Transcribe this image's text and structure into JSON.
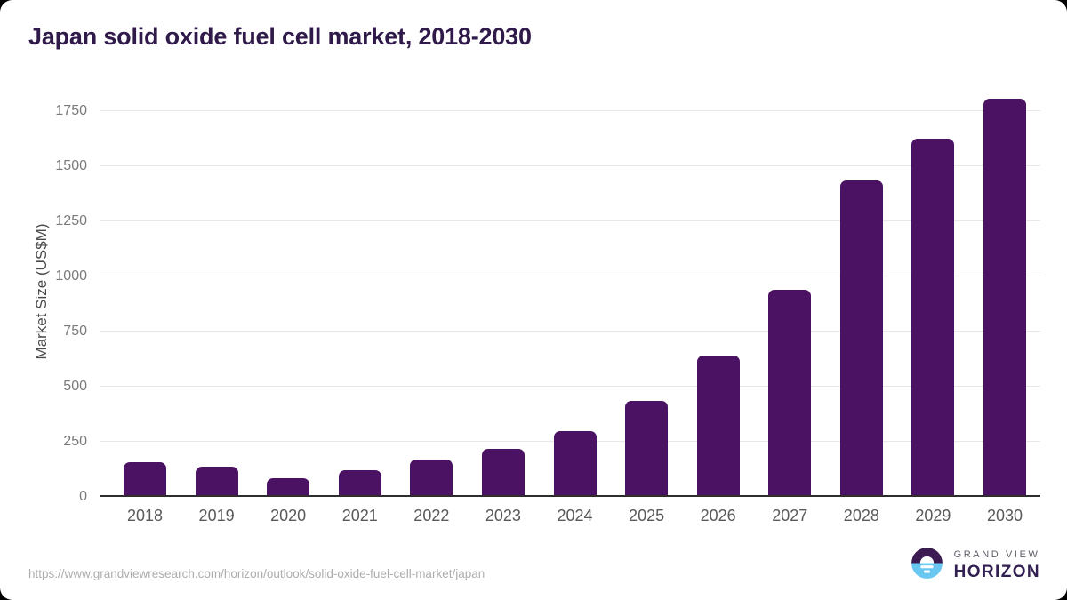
{
  "page": {
    "source_url": "https://www.grandviewresearch.com/horizon/outlook/solid-oxide-fuel-cell-market/japan"
  },
  "brand": {
    "icon": "grand-view-horizon-sunset-icon",
    "name_top": "GRAND VIEW",
    "name_bottom": "HORIZON",
    "icon_purple": "#3b1b52",
    "icon_blue": "#69c8f2",
    "name_top_color": "#5f5d68",
    "name_bottom_color": "#322052"
  },
  "chart_data": {
    "type": "bar",
    "title": "Japan solid oxide fuel cell market, 2018-2030",
    "xlabel": "",
    "ylabel": "Market Size (US$M)",
    "categories": [
      "2018",
      "2019",
      "2020",
      "2021",
      "2022",
      "2023",
      "2024",
      "2025",
      "2026",
      "2027",
      "2028",
      "2029",
      "2030"
    ],
    "values": [
      158,
      138,
      83,
      121,
      168,
      218,
      300,
      436,
      641,
      940,
      1437,
      1625,
      1805
    ],
    "ylim": [
      0,
      1863
    ],
    "yticks": [
      0,
      250,
      500,
      750,
      1000,
      1250,
      1500,
      1750
    ],
    "grid": true,
    "legend": false,
    "bar_color": "#4B1162",
    "axis_color": "#2d2d2d",
    "gridline_color": "#e8e8e8",
    "ytick_label_color": "#7a7a7a",
    "xtick_label_color": "#58595b",
    "title_color": "#2f1a4a"
  }
}
